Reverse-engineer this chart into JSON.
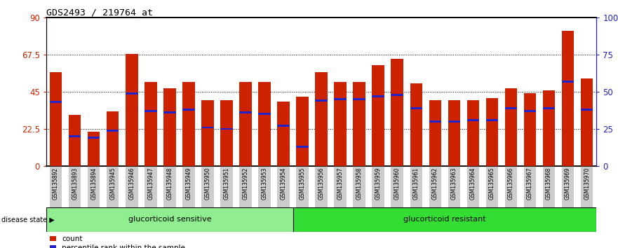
{
  "title": "GDS2493 / 219764_at",
  "samples": [
    "GSM135892",
    "GSM135893",
    "GSM135894",
    "GSM135945",
    "GSM135946",
    "GSM135947",
    "GSM135948",
    "GSM135949",
    "GSM135950",
    "GSM135951",
    "GSM135952",
    "GSM135953",
    "GSM135954",
    "GSM135955",
    "GSM135956",
    "GSM135957",
    "GSM135958",
    "GSM135959",
    "GSM135960",
    "GSM135961",
    "GSM135962",
    "GSM135963",
    "GSM135964",
    "GSM135965",
    "GSM135966",
    "GSM135967",
    "GSM135968",
    "GSM135969",
    "GSM135970"
  ],
  "counts": [
    57,
    31,
    21,
    33,
    68,
    51,
    47,
    51,
    40,
    40,
    51,
    51,
    39,
    42,
    57,
    51,
    51,
    61,
    65,
    50,
    40,
    40,
    40,
    41,
    47,
    44,
    46,
    82,
    53
  ],
  "percentile_ranks": [
    43,
    20,
    19,
    24,
    49,
    37,
    36,
    38,
    26,
    25,
    36,
    35,
    27,
    13,
    44,
    45,
    45,
    47,
    48,
    39,
    30,
    30,
    31,
    31,
    39,
    37,
    39,
    57,
    38
  ],
  "n_sensitive": 13,
  "n_resistant": 16,
  "group_sensitive": "glucorticoid sensitive",
  "group_resistant": "glucorticoid resistant",
  "disease_state_label": "disease state",
  "y_max": 90,
  "y_ticks_left": [
    0,
    22.5,
    45,
    67.5,
    90
  ],
  "y_ticks_right": [
    0,
    25,
    50,
    75,
    100
  ],
  "bar_color": "#CC2200",
  "percentile_color": "#2222CC",
  "bg_color": "#FFFFFF",
  "tick_label_color_left": "#CC2200",
  "tick_label_color_right": "#2222BB",
  "sensitive_bg": "#90EE90",
  "resistant_bg": "#33DD33",
  "xticklabel_bg": "#CCCCCC"
}
